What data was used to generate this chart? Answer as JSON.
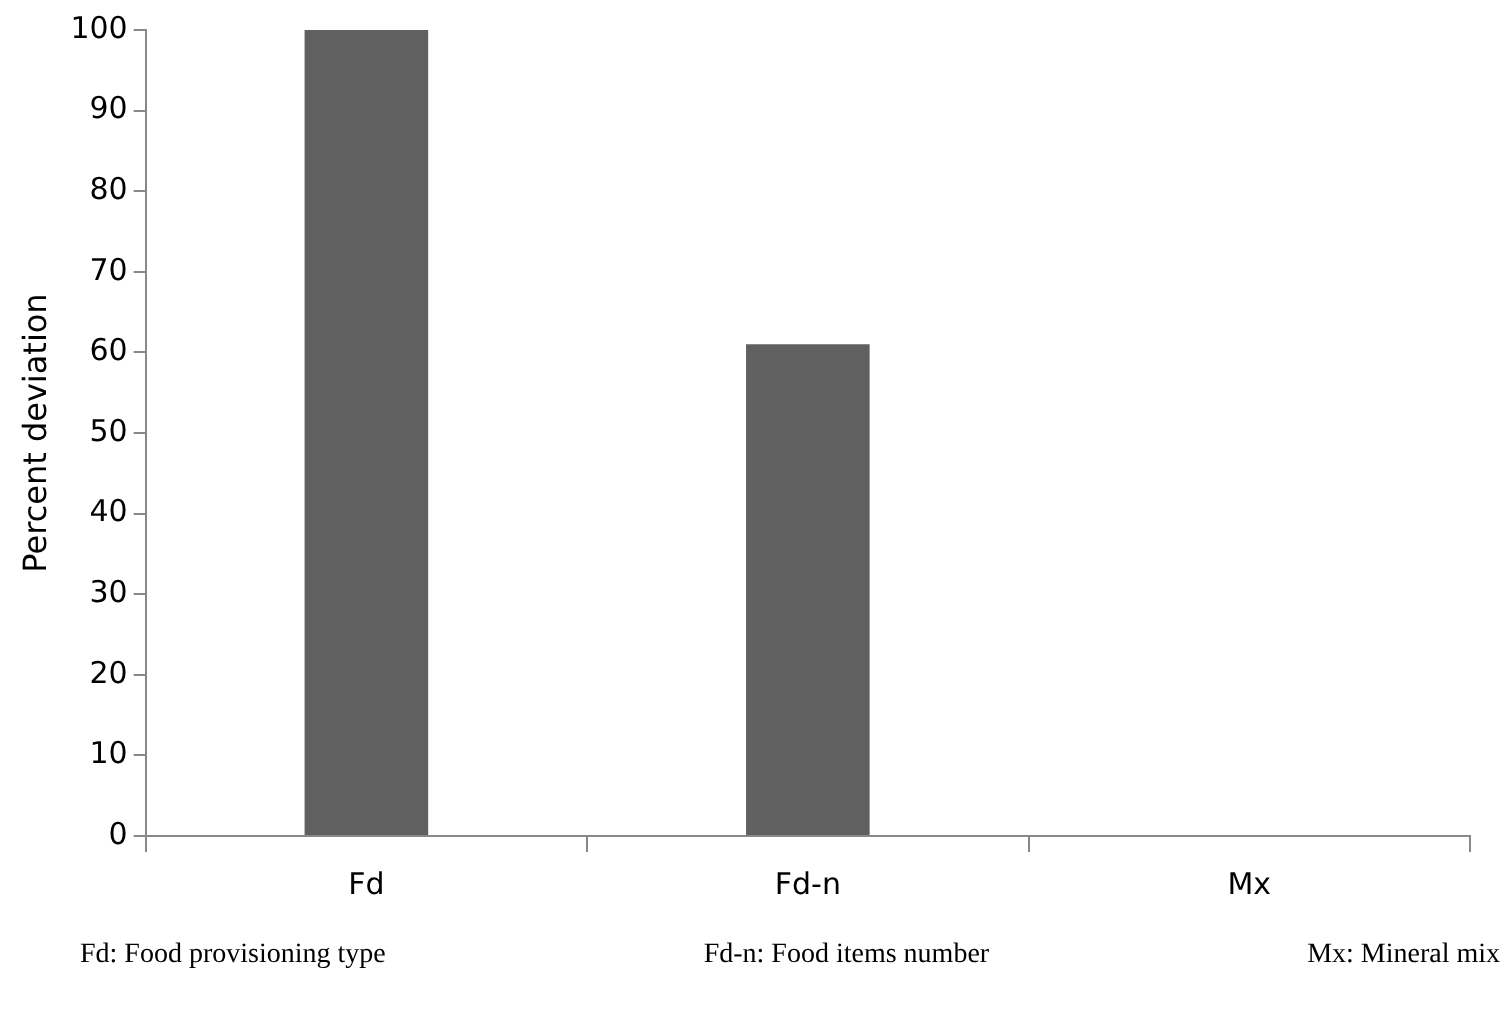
{
  "chart_data": {
    "type": "bar",
    "ylabel": "Percent deviation",
    "categories": [
      "Fd",
      "Fd-n",
      "Mx"
    ],
    "values": [
      100,
      61,
      0
    ],
    "color": "#606060",
    "ylim": [
      0,
      100
    ],
    "yticks": [
      0,
      10,
      20,
      30,
      40,
      50,
      60,
      70,
      80,
      90,
      100
    ],
    "grid": false,
    "legend": false,
    "annotations": [
      "Fd: Food provisioning type",
      "Fd-n: Food items number",
      "Mx: Mineral mix"
    ]
  }
}
